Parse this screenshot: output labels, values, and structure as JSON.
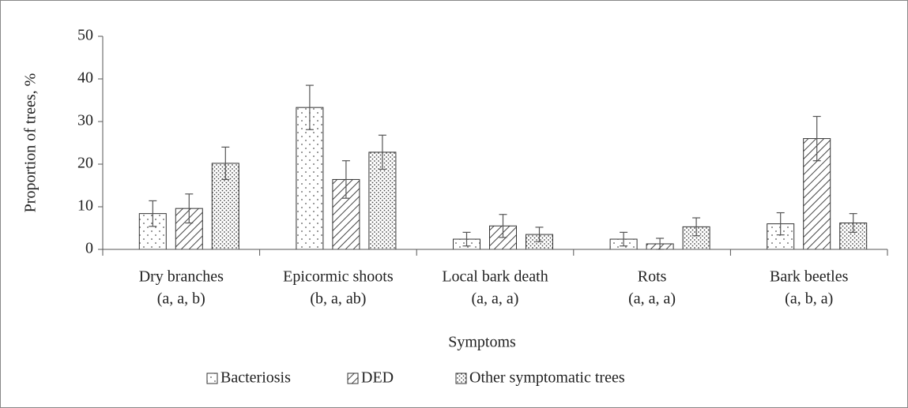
{
  "chart_data": {
    "type": "bar",
    "ylabel": "Proportion of trees, %",
    "xlabel": "Symptoms",
    "categories": [
      [
        "Dry branches",
        "(a, a, b)"
      ],
      [
        "Epicormic shoots",
        "(b, a, ab)"
      ],
      [
        "Local bark death",
        "(a, a, a)"
      ],
      [
        "Rots",
        "(a, a, a)"
      ],
      [
        "Bark beetles",
        "(a, b, a)"
      ]
    ],
    "series": [
      {
        "name": "Bacteriosis",
        "color": "#ffffff",
        "pattern": "sparse-dots",
        "values": [
          8.4,
          33.3,
          2.4,
          2.4,
          6.0
        ],
        "errors": [
          3.0,
          5.2,
          1.6,
          1.6,
          2.6
        ]
      },
      {
        "name": "DED",
        "color": "#ffffff",
        "pattern": "hatch",
        "values": [
          9.6,
          16.4,
          5.5,
          1.3,
          26.0
        ],
        "errors": [
          3.4,
          4.4,
          2.7,
          1.3,
          5.2
        ]
      },
      {
        "name": "Other symptomatic trees",
        "color": "#ffffff",
        "pattern": "dense-dots",
        "values": [
          20.2,
          22.8,
          3.5,
          5.3,
          6.2
        ],
        "errors": [
          3.8,
          4.0,
          1.7,
          2.1,
          2.2
        ]
      }
    ],
    "ylim": [
      0,
      50
    ],
    "yticks": [
      0,
      10,
      20,
      30,
      40,
      50
    ],
    "grid": false,
    "legend": "bottom"
  }
}
